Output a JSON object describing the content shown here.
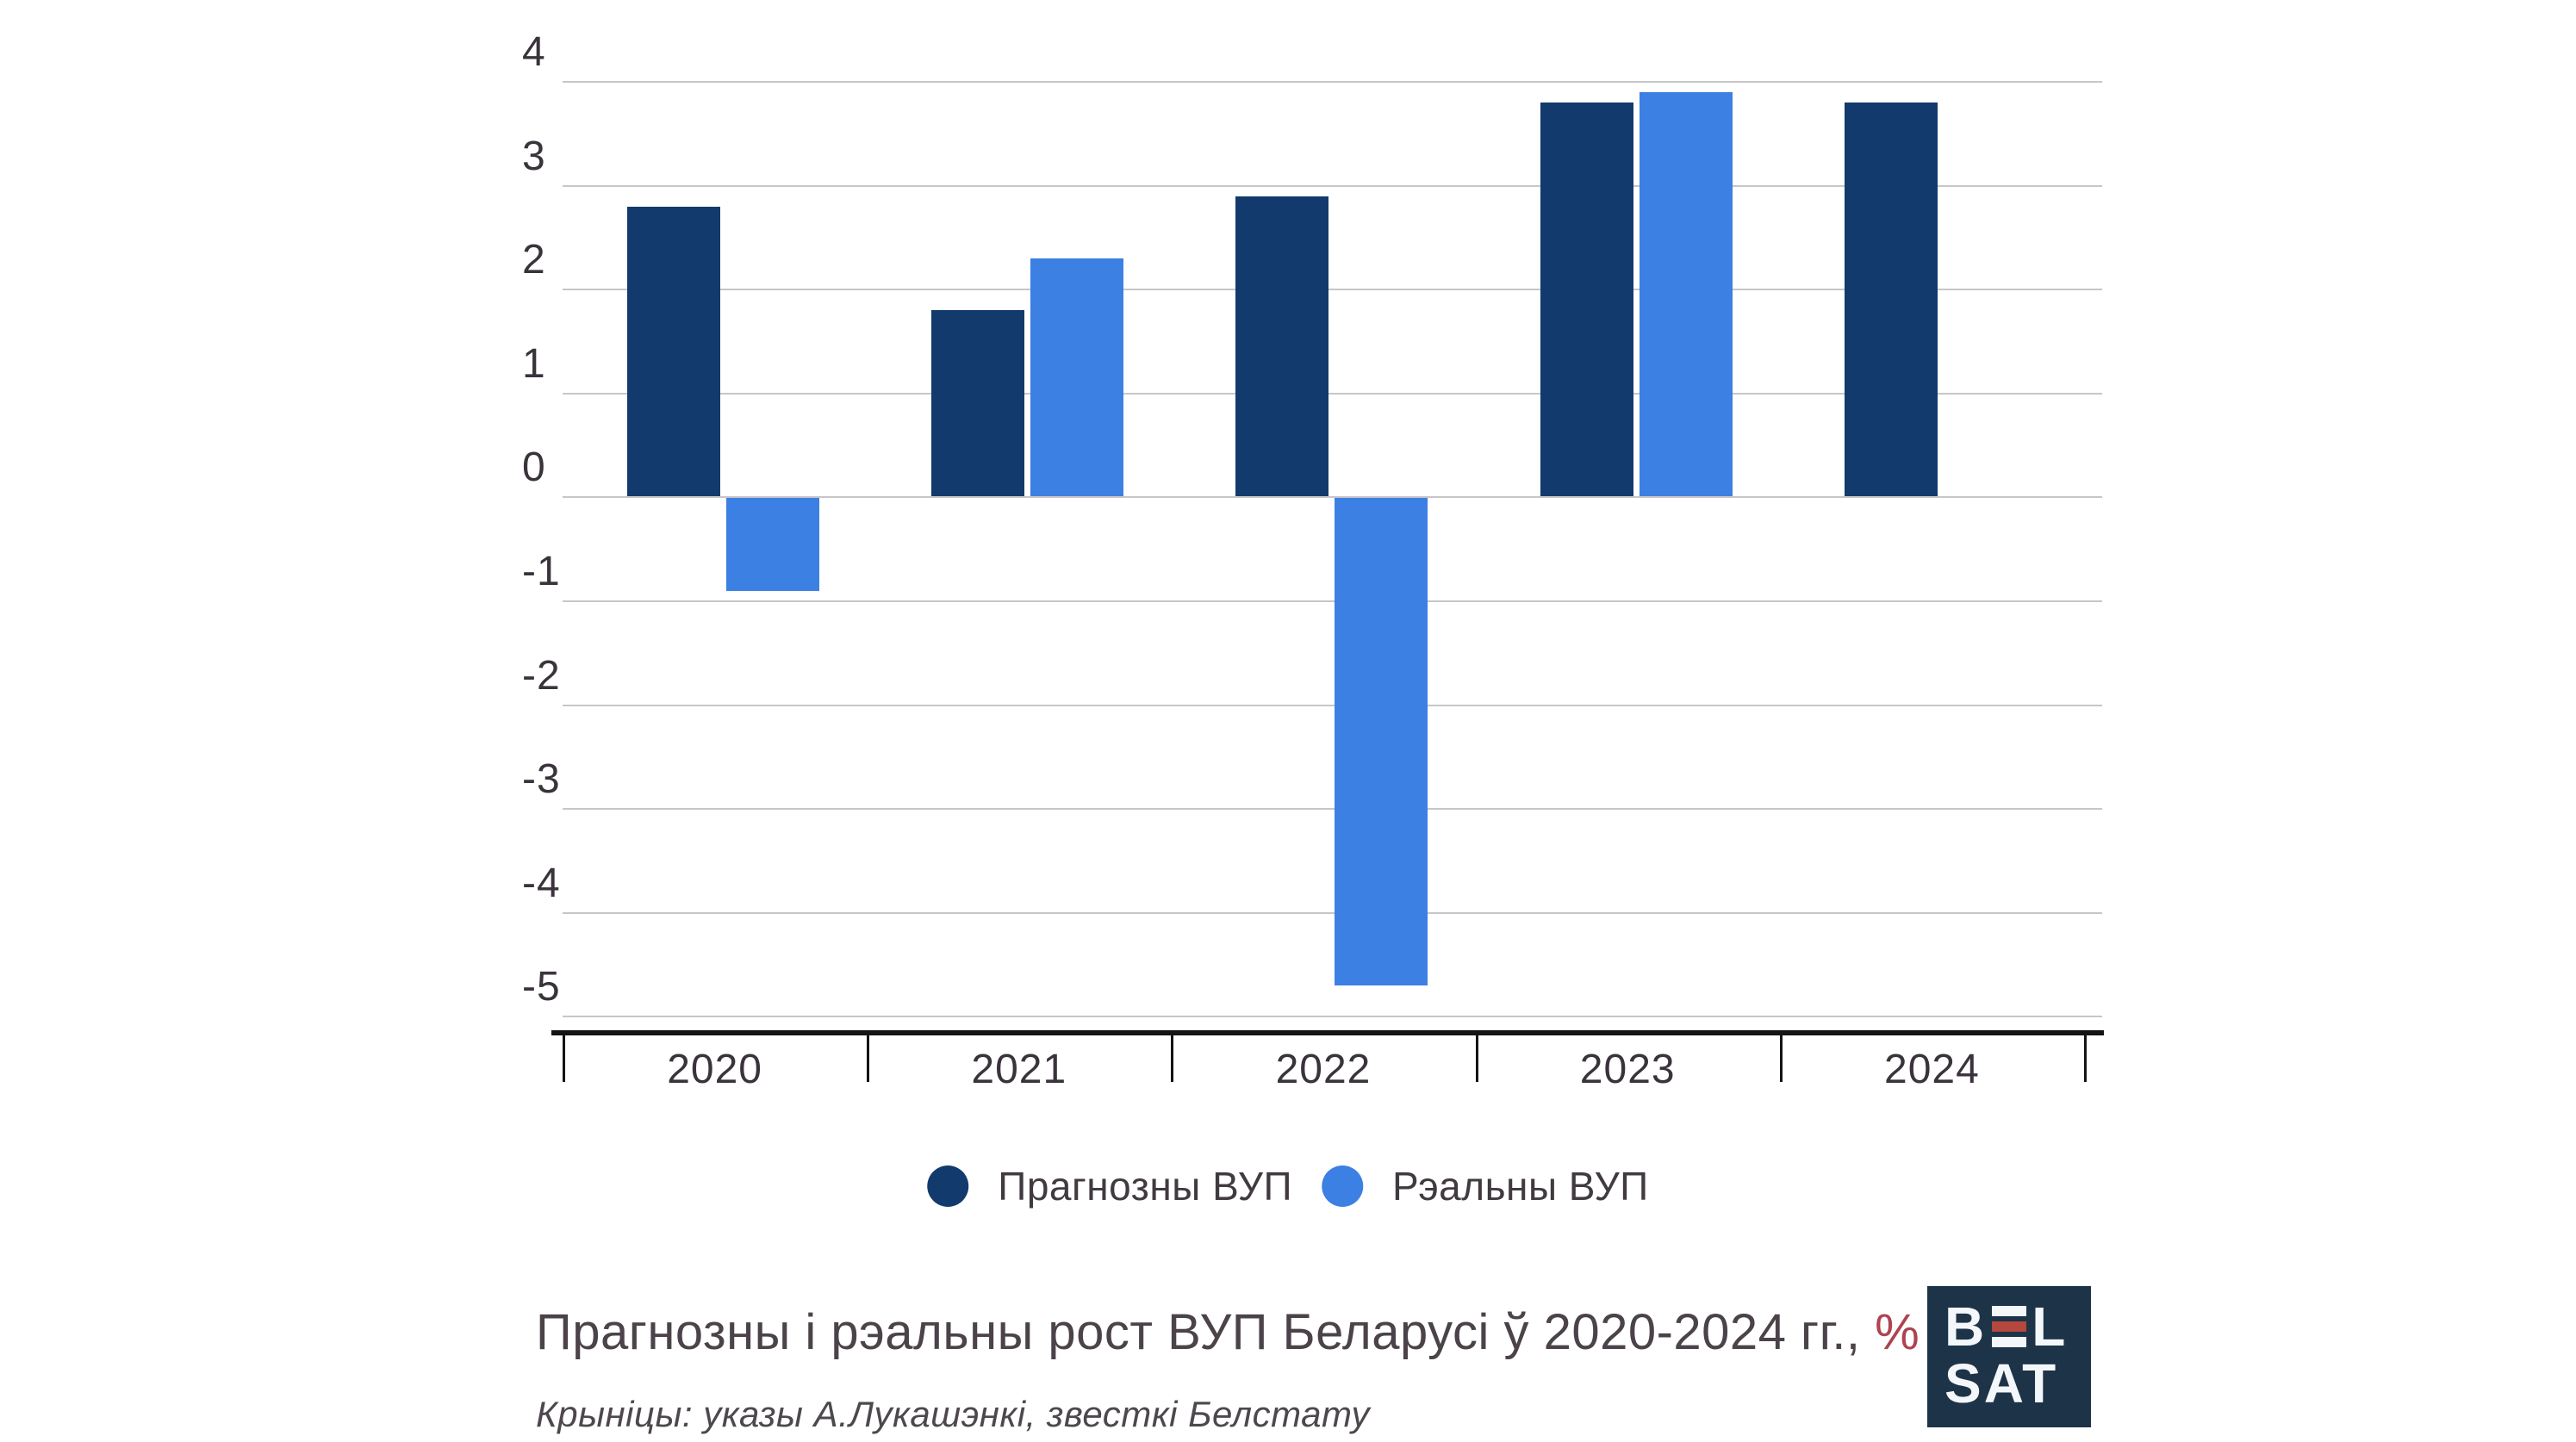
{
  "chart_data": {
    "type": "bar",
    "title": "Прагнозны і рэальны рост ВУП Беларусі ў 2020-2024 гг., %",
    "categories": [
      "2020",
      "2021",
      "2022",
      "2023",
      "2024"
    ],
    "series": [
      {
        "name": "Прагнозны ВУП",
        "key": "forecast",
        "color": "#123a6d",
        "values": [
          2.8,
          1.8,
          2.9,
          3.8,
          3.8
        ]
      },
      {
        "name": "Рэальны ВУП",
        "key": "actual",
        "color": "#3b80e2",
        "values": [
          -0.9,
          2.3,
          -4.7,
          3.9,
          null
        ]
      }
    ],
    "ylim": [
      -5,
      4
    ],
    "yticks": [
      4,
      3,
      2,
      1,
      0,
      -1,
      -2,
      -3,
      -4,
      -5
    ],
    "grid": true,
    "gridline_color": "#c9c5c9",
    "legend_position": "bottom"
  },
  "legend": {
    "items": [
      {
        "label": "Прагнозны ВУП",
        "color": "#123a6d"
      },
      {
        "label": "Рэальны ВУП",
        "color": "#3b80e2"
      }
    ]
  },
  "title": {
    "text": "Прагнозны і рэальны рост ВУП Беларусі ў 2020-2024 гг., ",
    "highlight": "%",
    "highlight_color": "#ad4450"
  },
  "source": {
    "text": "Крыніцы: указы А.Лукашэнкі, звесткі Белстату"
  },
  "logo": {
    "line1_pre": "B",
    "line1_post": "L",
    "line2": "SAT",
    "bg_color": "#1d3348",
    "bar_top": "#f4f7f9",
    "bar_middle": "#b5473e",
    "bar_bottom": "#f4f7f9"
  }
}
